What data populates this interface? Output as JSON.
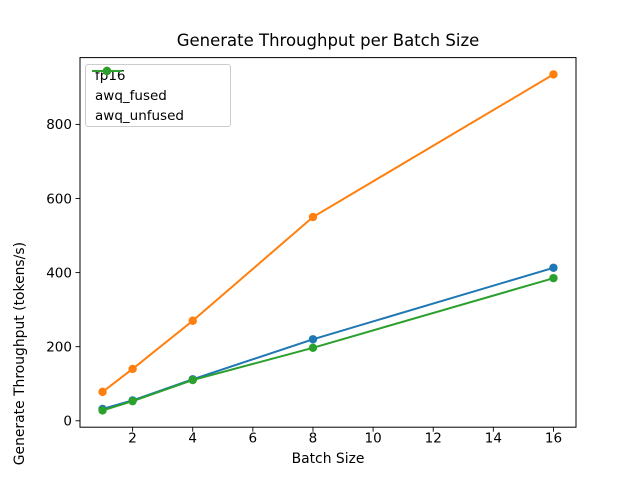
{
  "chart_data": {
    "type": "line",
    "title": "Generate Throughput per Batch Size",
    "xlabel": "Batch Size",
    "ylabel": "Generate Throughput (tokens/s)",
    "x": [
      1,
      2,
      4,
      8,
      16
    ],
    "series": [
      {
        "name": "fp16",
        "color": "#1f77b4",
        "values": [
          32,
          55,
          112,
          220,
          413
        ]
      },
      {
        "name": "awq_fused",
        "color": "#ff7f0e",
        "values": [
          78,
          140,
          270,
          550,
          935
        ]
      },
      {
        "name": "awq_unfused",
        "color": "#2ca02c",
        "values": [
          28,
          53,
          110,
          197,
          385
        ]
      }
    ],
    "marker": "o",
    "xticks": [
      2,
      4,
      6,
      8,
      10,
      12,
      14,
      16
    ],
    "yticks": [
      0,
      200,
      400,
      600,
      800
    ],
    "xlim": [
      0.25,
      16.75
    ],
    "ylim": [
      -17.35,
      980.35
    ],
    "grid": false,
    "legend_position": "upper left",
    "axes_color": "#000000",
    "legend_border_color": "#cccccc",
    "background_color": "#ffffff"
  }
}
